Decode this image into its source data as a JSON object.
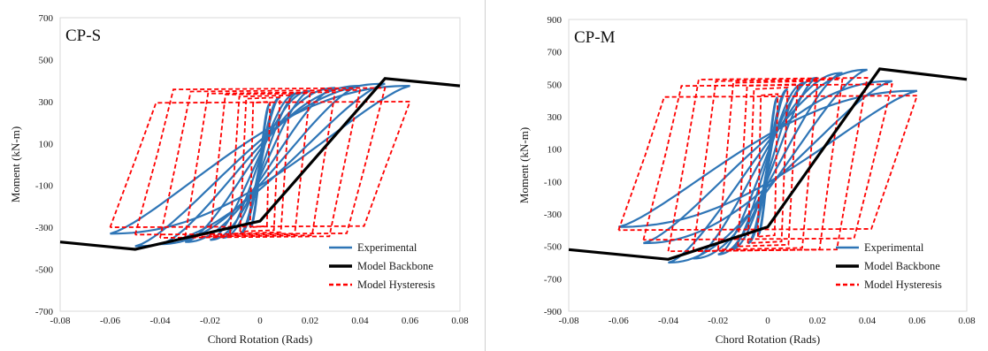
{
  "chart_data": [
    {
      "type": "line",
      "label": "CP-S",
      "xlabel": "Chord Rotation (Rads)",
      "ylabel": "Moment (kN-m)",
      "xlim": [
        -0.08,
        0.08
      ],
      "ylim": [
        -700,
        700
      ],
      "xticks": [
        "-0.08",
        "-0.06",
        "-0.04",
        "-0.02",
        "0",
        "0.02",
        "0.04",
        "0.06",
        "0.08"
      ],
      "yticks": [
        "700",
        "500",
        "300",
        "100",
        "-100",
        "-300",
        "-500",
        "-700"
      ],
      "legend_position": "bottom-right",
      "grid": false,
      "series": [
        {
          "name": "Experimental",
          "color": "#2e75b6",
          "style": "solid",
          "kind": "hysteresis",
          "cycles": [
            {
              "xmin": -0.004,
              "xmax": 0.004,
              "ypos": 290,
              "yneg": -300,
              "pinch": 0.5
            },
            {
              "xmin": -0.008,
              "xmax": 0.008,
              "ypos": 320,
              "yneg": -330,
              "pinch": 0.5
            },
            {
              "xmin": -0.015,
              "xmax": 0.015,
              "ypos": 340,
              "yneg": -350,
              "pinch": 0.45
            },
            {
              "xmin": -0.02,
              "xmax": 0.02,
              "ypos": 350,
              "yneg": -360,
              "pinch": 0.4
            },
            {
              "xmin": -0.03,
              "xmax": 0.03,
              "ypos": 365,
              "yneg": -370,
              "pinch": 0.35
            },
            {
              "xmin": -0.04,
              "xmax": 0.04,
              "ypos": 375,
              "yneg": -380,
              "pinch": 0.3
            },
            {
              "xmin": -0.05,
              "xmax": 0.05,
              "ypos": 385,
              "yneg": -390,
              "pinch": 0.25
            },
            {
              "xmin": -0.06,
              "xmax": 0.06,
              "ypos": 375,
              "yneg": -330,
              "pinch": 0.2
            }
          ]
        },
        {
          "name": "Model Backbone",
          "color": "#000000",
          "style": "thick",
          "x": [
            -0.08,
            -0.05,
            0.0,
            0.05,
            0.08
          ],
          "y": [
            -370,
            -405,
            -270,
            410,
            375
          ]
        },
        {
          "name": "Model Hysteresis",
          "color": "#ff0000",
          "style": "dashed",
          "kind": "bilinear",
          "cycles": [
            {
              "xmin": -0.004,
              "xmax": 0.004,
              "ypos": 300,
              "yneg": -300
            },
            {
              "xmin": -0.008,
              "xmax": 0.008,
              "ypos": 320,
              "yneg": -320
            },
            {
              "xmin": -0.012,
              "xmax": 0.012,
              "ypos": 330,
              "yneg": -330
            },
            {
              "xmin": -0.02,
              "xmax": 0.02,
              "ypos": 340,
              "yneg": -340
            },
            {
              "xmin": -0.03,
              "xmax": 0.03,
              "ypos": 345,
              "yneg": -345
            },
            {
              "xmin": -0.04,
              "xmax": 0.04,
              "ypos": 355,
              "yneg": -350
            },
            {
              "xmin": -0.05,
              "xmax": 0.05,
              "ypos": 365,
              "yneg": -335
            },
            {
              "xmin": -0.06,
              "xmax": 0.06,
              "ypos": 300,
              "yneg": -300
            }
          ]
        }
      ]
    },
    {
      "type": "line",
      "label": "CP-M",
      "xlabel": "Chord Rotation (Rads)",
      "ylabel": "Moment (kN-m)",
      "xlim": [
        -0.08,
        0.08
      ],
      "ylim": [
        -900,
        900
      ],
      "xticks": [
        "-0.08",
        "-0.06",
        "-0.04",
        "-0.02",
        "0",
        "0.02",
        "0.04",
        "0.06",
        "0.08"
      ],
      "yticks": [
        "900",
        "700",
        "500",
        "300",
        "100",
        "-100",
        "-300",
        "-500",
        "-700",
        "-900"
      ],
      "legend_position": "bottom-right",
      "grid": false,
      "series": [
        {
          "name": "Experimental",
          "color": "#2e75b6",
          "style": "solid",
          "kind": "hysteresis",
          "cycles": [
            {
              "xmin": -0.004,
              "xmax": 0.004,
              "ypos": 420,
              "yneg": -430,
              "pinch": 0.5
            },
            {
              "xmin": -0.008,
              "xmax": 0.008,
              "ypos": 470,
              "yneg": -480,
              "pinch": 0.5
            },
            {
              "xmin": -0.015,
              "xmax": 0.015,
              "ypos": 510,
              "yneg": -520,
              "pinch": 0.45
            },
            {
              "xmin": -0.02,
              "xmax": 0.02,
              "ypos": 540,
              "yneg": -550,
              "pinch": 0.4
            },
            {
              "xmin": -0.03,
              "xmax": 0.03,
              "ypos": 570,
              "yneg": -575,
              "pinch": 0.35
            },
            {
              "xmin": -0.04,
              "xmax": 0.04,
              "ypos": 590,
              "yneg": -600,
              "pinch": 0.3
            },
            {
              "xmin": -0.05,
              "xmax": 0.05,
              "ypos": 520,
              "yneg": -480,
              "pinch": 0.25
            },
            {
              "xmin": -0.06,
              "xmax": 0.06,
              "ypos": 460,
              "yneg": -380,
              "pinch": 0.2
            }
          ]
        },
        {
          "name": "Model Backbone",
          "color": "#000000",
          "style": "thick",
          "x": [
            -0.08,
            -0.04,
            0.0,
            0.045,
            0.08
          ],
          "y": [
            -520,
            -580,
            -380,
            595,
            530
          ]
        },
        {
          "name": "Model Hysteresis",
          "color": "#ff0000",
          "style": "dashed",
          "kind": "bilinear",
          "cycles": [
            {
              "xmin": -0.004,
              "xmax": 0.004,
              "ypos": 440,
              "yneg": -440
            },
            {
              "xmin": -0.008,
              "xmax": 0.008,
              "ypos": 480,
              "yneg": -480
            },
            {
              "xmin": -0.012,
              "xmax": 0.012,
              "ypos": 500,
              "yneg": -500
            },
            {
              "xmin": -0.02,
              "xmax": 0.02,
              "ypos": 520,
              "yneg": -520
            },
            {
              "xmin": -0.03,
              "xmax": 0.03,
              "ypos": 530,
              "yneg": -530
            },
            {
              "xmin": -0.04,
              "xmax": 0.04,
              "ypos": 540,
              "yneg": -530
            },
            {
              "xmin": -0.05,
              "xmax": 0.05,
              "ypos": 500,
              "yneg": -460
            },
            {
              "xmin": -0.06,
              "xmax": 0.06,
              "ypos": 430,
              "yneg": -400
            }
          ]
        }
      ]
    }
  ]
}
